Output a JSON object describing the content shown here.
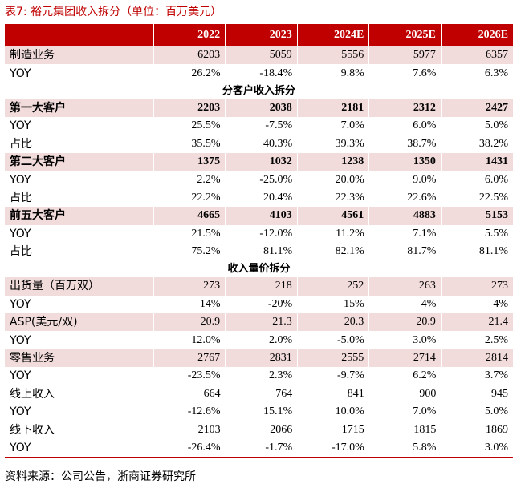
{
  "caption": {
    "label": "表7:",
    "title": "裕元集团收入拆分（单位：百万美元）"
  },
  "header": {
    "corner": "",
    "years": [
      "2022",
      "2023",
      "2024E",
      "2025E",
      "2026E"
    ]
  },
  "rows": [
    {
      "type": "band",
      "label": "制造业务",
      "values": [
        "6203",
        "5059",
        "5556",
        "5977",
        "6357"
      ]
    },
    {
      "type": "plain",
      "label": "YOY",
      "values": [
        "26.2%",
        "-18.4%",
        "9.8%",
        "7.6%",
        "6.3%"
      ]
    },
    {
      "type": "section",
      "label": "分客户收入拆分"
    },
    {
      "type": "band-bold",
      "label": "第一大客户",
      "values": [
        "2203",
        "2038",
        "2181",
        "2312",
        "2427"
      ]
    },
    {
      "type": "plain",
      "label": "YOY",
      "values": [
        "25.5%",
        "-7.5%",
        "7.0%",
        "6.0%",
        "5.0%"
      ]
    },
    {
      "type": "plain",
      "label": "占比",
      "values": [
        "35.5%",
        "40.3%",
        "39.3%",
        "38.7%",
        "38.2%"
      ]
    },
    {
      "type": "band-bold",
      "label": "第二大客户",
      "values": [
        "1375",
        "1032",
        "1238",
        "1350",
        "1431"
      ]
    },
    {
      "type": "plain",
      "label": "YOY",
      "values": [
        "2.2%",
        "-25.0%",
        "20.0%",
        "9.0%",
        "6.0%"
      ]
    },
    {
      "type": "plain",
      "label": "占比",
      "values": [
        "22.2%",
        "20.4%",
        "22.3%",
        "22.6%",
        "22.5%"
      ]
    },
    {
      "type": "band-bold",
      "label": "前五大客户",
      "values": [
        "4665",
        "4103",
        "4561",
        "4883",
        "5153"
      ]
    },
    {
      "type": "plain",
      "label": "YOY",
      "values": [
        "21.5%",
        "-12.0%",
        "11.2%",
        "7.1%",
        "5.5%"
      ]
    },
    {
      "type": "plain",
      "label": "占比",
      "values": [
        "75.2%",
        "81.1%",
        "82.1%",
        "81.7%",
        "81.1%"
      ]
    },
    {
      "type": "section",
      "label": "收入量价拆分"
    },
    {
      "type": "band",
      "label": "出货量（百万双）",
      "values": [
        "273",
        "218",
        "252",
        "263",
        "273"
      ]
    },
    {
      "type": "plain",
      "label": "YOY",
      "values": [
        "14%",
        "-20%",
        "15%",
        "4%",
        "4%"
      ]
    },
    {
      "type": "band",
      "label": "ASP(美元/双)",
      "values": [
        "20.9",
        "21.3",
        "20.3",
        "20.9",
        "21.4"
      ]
    },
    {
      "type": "plain",
      "label": "YOY",
      "values": [
        "12.0%",
        "2.0%",
        "-5.0%",
        "3.0%",
        "2.5%"
      ]
    },
    {
      "type": "band",
      "label": "零售业务",
      "values": [
        "2767",
        "2831",
        "2555",
        "2714",
        "2814"
      ]
    },
    {
      "type": "plain",
      "label": "YOY",
      "values": [
        "-23.5%",
        "2.3%",
        "-9.7%",
        "6.2%",
        "3.7%"
      ]
    },
    {
      "type": "plain",
      "label": "线上收入",
      "values": [
        "664",
        "764",
        "841",
        "900",
        "945"
      ]
    },
    {
      "type": "plain",
      "label": "YOY",
      "values": [
        "-12.6%",
        "15.1%",
        "10.0%",
        "7.0%",
        "5.0%"
      ]
    },
    {
      "type": "plain",
      "label": "线下收入",
      "values": [
        "2103",
        "2066",
        "1715",
        "1815",
        "1869"
      ]
    },
    {
      "type": "plain",
      "label": "YOY",
      "values": [
        "-26.4%",
        "-1.7%",
        "-17.0%",
        "5.8%",
        "3.0%"
      ]
    }
  ],
  "source": "资料来源：公司公告，浙商证券研究所",
  "colors": {
    "accent": "#c00000",
    "band": "#f2dcdb"
  }
}
